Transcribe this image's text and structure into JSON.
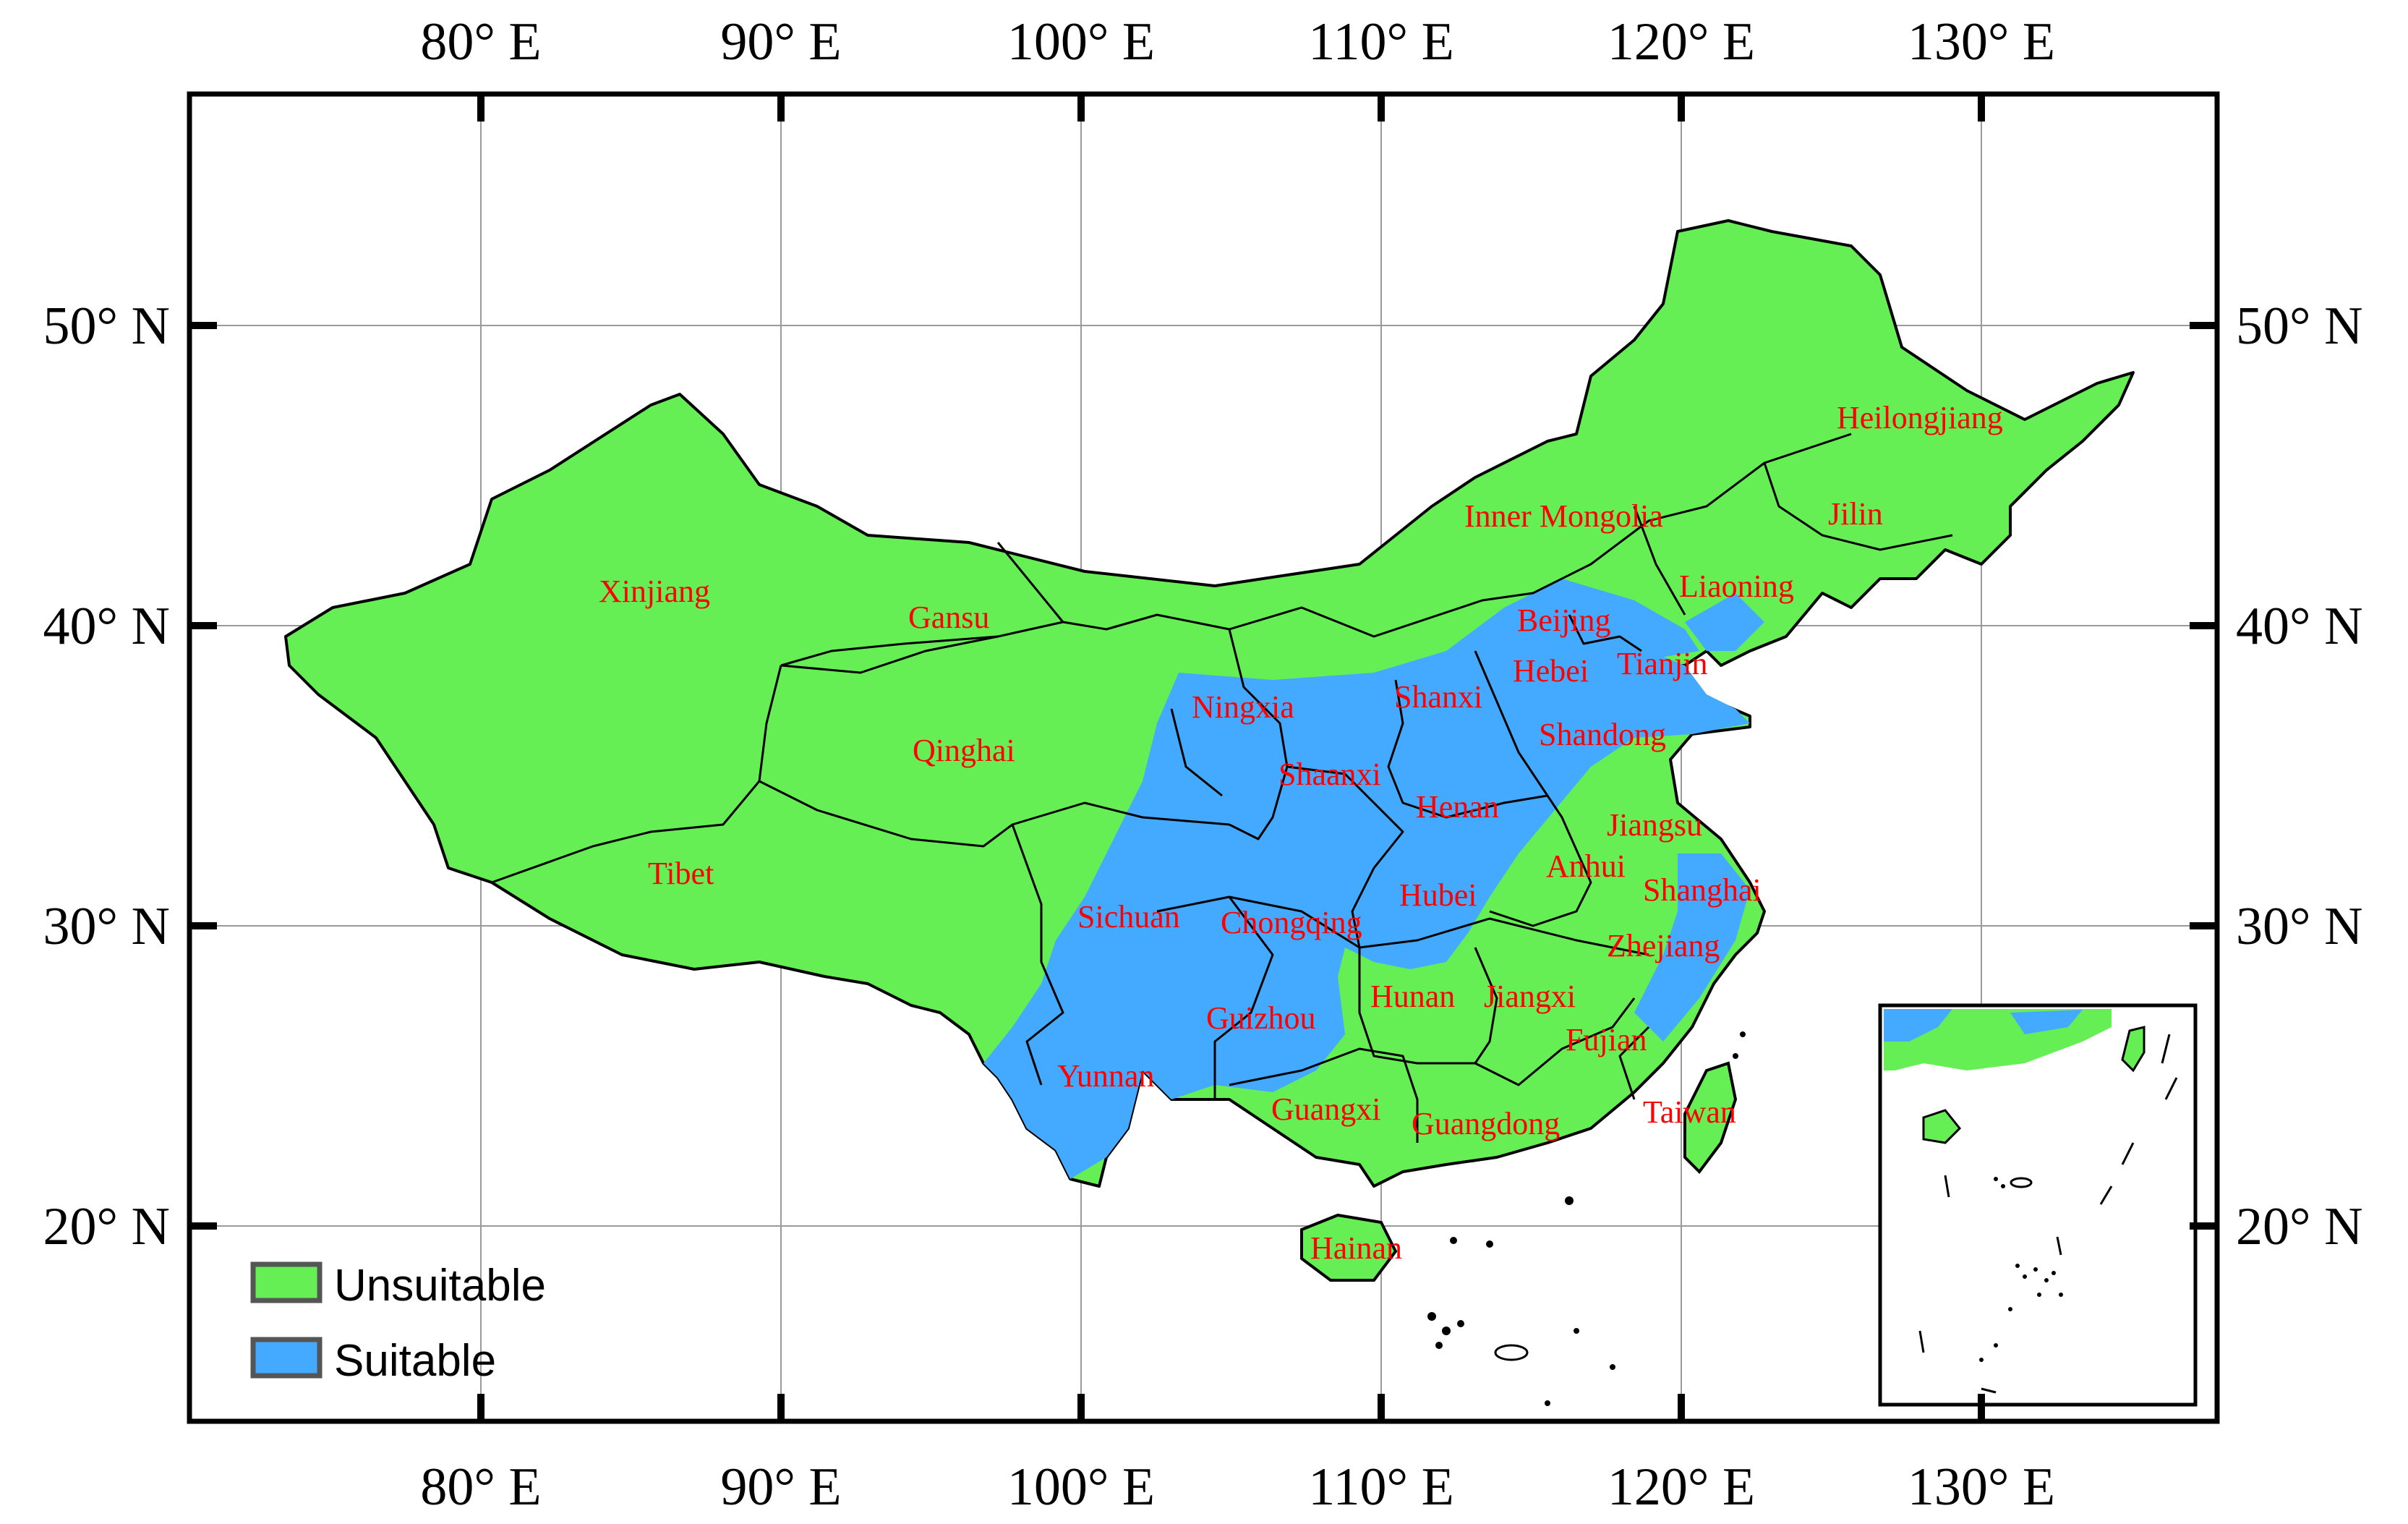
{
  "colors": {
    "unsuitable": "#66ee55",
    "suitable": "#44aaff",
    "province_label": "#ff0000",
    "border": "#000000",
    "grid": "#999999"
  },
  "axes": {
    "longitude_ticks": [
      "80° E",
      "90° E",
      "100° E",
      "110° E",
      "120° E",
      "130° E"
    ],
    "latitude_ticks": [
      "50° N",
      "40° N",
      "30° N",
      "20° N"
    ]
  },
  "legend": {
    "items": [
      {
        "label": "Unsuitable",
        "color": "#66ee55"
      },
      {
        "label": "Suitable",
        "color": "#44aaff"
      }
    ]
  },
  "provinces": [
    {
      "name": "Heilongjiang"
    },
    {
      "name": "Jilin"
    },
    {
      "name": "Inner Mongolia"
    },
    {
      "name": "Liaoning"
    },
    {
      "name": "Beijing"
    },
    {
      "name": "Tianjin"
    },
    {
      "name": "Hebei"
    },
    {
      "name": "Xinjiang"
    },
    {
      "name": "Gansu"
    },
    {
      "name": "Ningxia"
    },
    {
      "name": "Shanxi"
    },
    {
      "name": "Shandong"
    },
    {
      "name": "Qinghai"
    },
    {
      "name": "Shaanxi"
    },
    {
      "name": "Henan"
    },
    {
      "name": "Jiangsu"
    },
    {
      "name": "Tibet"
    },
    {
      "name": "Anhui"
    },
    {
      "name": "Shanghai"
    },
    {
      "name": "Hubei"
    },
    {
      "name": "Sichuan"
    },
    {
      "name": "Chongqing"
    },
    {
      "name": "Zhejiang"
    },
    {
      "name": "Hunan"
    },
    {
      "name": "Jiangxi"
    },
    {
      "name": "Guizhou"
    },
    {
      "name": "Fujian"
    },
    {
      "name": "Yunnan"
    },
    {
      "name": "Guangxi"
    },
    {
      "name": "Guangdong"
    },
    {
      "name": "Taiwan"
    },
    {
      "name": "Hainan"
    }
  ]
}
